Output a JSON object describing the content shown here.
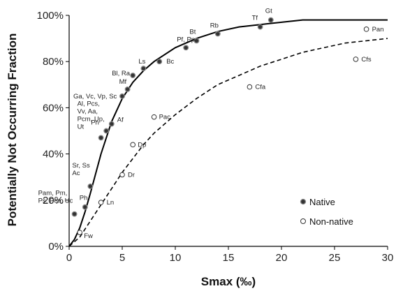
{
  "chart_data": {
    "type": "scatter",
    "xlabel": "Smax (‰)",
    "ylabel": "Potentially Not Occurring Fraction",
    "xlim": [
      0,
      30
    ],
    "ylim": [
      0,
      100
    ],
    "x_ticks": [
      "0",
      "5",
      "10",
      "15",
      "20",
      "25",
      "30"
    ],
    "y_ticks": [
      "0%",
      "20%",
      "40%",
      "60%",
      "80%",
      "100%"
    ],
    "legend_position": "right",
    "series": [
      {
        "name": "Native",
        "marker": "filled-circle",
        "curve": "solid",
        "points": [
          {
            "x": 0.5,
            "y": 14,
            "label": "Pam, Pm,\nPs, Pca, Uc"
          },
          {
            "x": 1.5,
            "y": 17,
            "label": "Ph"
          },
          {
            "x": 2,
            "y": 26,
            "label": "Sr, Ss\nAc"
          },
          {
            "x": 3,
            "y": 47,
            "label": "Al, Pcs,\nVv, Aa,\nPcm, Up,\nUt"
          },
          {
            "x": 3.5,
            "y": 50,
            "label": "Pn"
          },
          {
            "x": 4,
            "y": 53,
            "label": "Af"
          },
          {
            "x": 5,
            "y": 65,
            "label": "Ga, Vc, Vp, Sc"
          },
          {
            "x": 5.5,
            "y": 68,
            "label": "Mf"
          },
          {
            "x": 6,
            "y": 74,
            "label": "Bl, Ra"
          },
          {
            "x": 7,
            "y": 77,
            "label": "Ls"
          },
          {
            "x": 8.5,
            "y": 80,
            "label": "Bc"
          },
          {
            "x": 11,
            "y": 86,
            "label": "Pf, Pp"
          },
          {
            "x": 12,
            "y": 89,
            "label": "Bt"
          },
          {
            "x": 14,
            "y": 92,
            "label": "Rb"
          },
          {
            "x": 18,
            "y": 95,
            "label": "Tf"
          },
          {
            "x": 19,
            "y": 98,
            "label": "Gt"
          }
        ]
      },
      {
        "name": "Non-native",
        "marker": "open-circle",
        "curve": "dashed",
        "points": [
          {
            "x": 1,
            "y": 6,
            "label": "Fw"
          },
          {
            "x": 3,
            "y": 19,
            "label": "Ln"
          },
          {
            "x": 5,
            "y": 31,
            "label": "Dr"
          },
          {
            "x": 6,
            "y": 44,
            "label": "Dp"
          },
          {
            "x": 8,
            "y": 56,
            "label": "Pac"
          },
          {
            "x": 17,
            "y": 69,
            "label": "Cfa"
          },
          {
            "x": 27,
            "y": 81,
            "label": "Cfs"
          },
          {
            "x": 28,
            "y": 94,
            "label": "Pan"
          }
        ]
      }
    ],
    "fit_curves": {
      "native": [
        [
          0,
          0
        ],
        [
          0.5,
          3
        ],
        [
          1,
          8
        ],
        [
          1.5,
          15
        ],
        [
          2,
          23
        ],
        [
          3,
          40
        ],
        [
          4,
          54
        ],
        [
          5,
          64
        ],
        [
          6,
          71
        ],
        [
          7,
          76
        ],
        [
          8,
          80
        ],
        [
          10,
          86
        ],
        [
          12,
          90
        ],
        [
          14,
          93
        ],
        [
          16,
          95
        ],
        [
          18,
          96
        ],
        [
          20,
          97
        ],
        [
          22,
          98
        ],
        [
          25,
          98
        ],
        [
          28,
          98
        ],
        [
          30,
          98
        ]
      ],
      "non_native": [
        [
          0,
          0
        ],
        [
          1,
          4
        ],
        [
          2,
          11
        ],
        [
          3,
          18
        ],
        [
          4,
          25
        ],
        [
          5,
          32
        ],
        [
          6,
          38
        ],
        [
          7,
          44
        ],
        [
          8,
          49
        ],
        [
          10,
          57
        ],
        [
          12,
          64
        ],
        [
          14,
          70
        ],
        [
          16,
          74
        ],
        [
          18,
          78
        ],
        [
          20,
          81
        ],
        [
          22,
          84
        ],
        [
          24,
          86
        ],
        [
          26,
          88
        ],
        [
          28,
          89
        ],
        [
          30,
          90
        ]
      ]
    }
  }
}
